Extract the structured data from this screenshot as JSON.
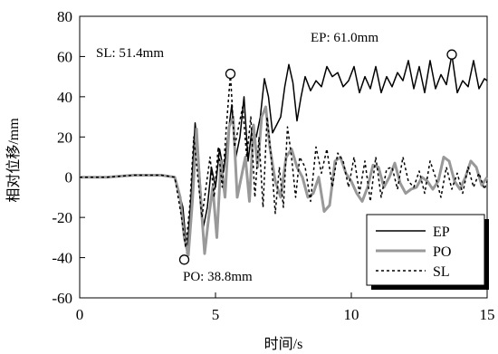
{
  "chart_data": {
    "type": "line",
    "xlabel": "时间/s",
    "ylabel": "相对位移/mm",
    "xlim": [
      0,
      15
    ],
    "ylim": [
      -60,
      80
    ],
    "xticks": [
      "0",
      "5",
      "10",
      "15"
    ],
    "yticks": [
      "-60",
      "-40",
      "-20",
      "0",
      "20",
      "40",
      "60",
      "80"
    ],
    "grid": false,
    "legend_position": "bottom-right",
    "series": [
      {
        "name": "EP",
        "color": "#000000",
        "style": "solid",
        "x": [
          0,
          1,
          2,
          3,
          3.5,
          3.8,
          3.95,
          4.1,
          4.25,
          4.4,
          4.55,
          4.7,
          4.85,
          5.0,
          5.15,
          5.3,
          5.45,
          5.6,
          5.75,
          5.9,
          6.05,
          6.2,
          6.35,
          6.5,
          6.65,
          6.8,
          6.95,
          7.1,
          7.25,
          7.4,
          7.55,
          7.7,
          7.85,
          8.0,
          8.15,
          8.3,
          8.5,
          8.7,
          8.9,
          9.1,
          9.3,
          9.5,
          9.7,
          9.9,
          10.1,
          10.3,
          10.5,
          10.7,
          10.9,
          11.1,
          11.3,
          11.5,
          11.7,
          11.9,
          12.1,
          12.3,
          12.5,
          12.7,
          12.9,
          13.1,
          13.3,
          13.5,
          13.7,
          13.9,
          14.1,
          14.3,
          14.5,
          14.7,
          14.9,
          15.0
        ],
        "y": [
          0,
          0,
          1,
          1,
          0,
          -15,
          -38,
          -10,
          27,
          5,
          -25,
          -15,
          5,
          -5,
          14,
          3,
          20,
          36,
          10,
          20,
          40,
          8,
          25,
          20,
          30,
          49,
          40,
          22,
          26,
          30,
          45,
          56,
          47,
          28,
          40,
          50,
          43,
          48,
          45,
          55,
          50,
          52,
          45,
          48,
          55,
          42,
          50,
          44,
          55,
          42,
          50,
          45,
          52,
          48,
          58,
          44,
          55,
          42,
          58,
          44,
          51,
          46,
          61,
          42,
          48,
          45,
          58,
          44,
          49,
          48
        ]
      },
      {
        "name": "PO",
        "color": "#999999",
        "style": "solid",
        "x": [
          0,
          1,
          2,
          3,
          3.5,
          3.7,
          3.85,
          4.0,
          4.15,
          4.3,
          4.45,
          4.6,
          4.75,
          4.9,
          5.05,
          5.2,
          5.35,
          5.5,
          5.65,
          5.8,
          5.95,
          6.1,
          6.25,
          6.4,
          6.55,
          6.7,
          6.85,
          7.0,
          7.2,
          7.4,
          7.6,
          7.8,
          8.0,
          8.2,
          8.4,
          8.6,
          8.8,
          9.0,
          9.2,
          9.4,
          9.6,
          9.8,
          10.0,
          10.2,
          10.4,
          10.6,
          10.8,
          11.0,
          11.2,
          11.4,
          11.6,
          11.8,
          12.0,
          12.2,
          12.4,
          12.6,
          12.8,
          13.0,
          13.2,
          13.4,
          13.6,
          13.8,
          14.0,
          14.2,
          14.4,
          14.6,
          14.8,
          15.0
        ],
        "y": [
          0,
          0,
          1,
          1,
          0,
          -10,
          -30,
          -38.8,
          -12,
          24,
          -10,
          -38,
          -20,
          -5,
          -30,
          8,
          -10,
          25,
          30,
          -10,
          0,
          10,
          -12,
          26,
          5,
          30,
          35,
          15,
          -2,
          -10,
          10,
          14,
          5,
          0,
          -10,
          -8,
          0,
          -17,
          -14,
          8,
          10,
          2,
          -2,
          -8,
          -12,
          -5,
          6,
          5,
          -5,
          0,
          7,
          -3,
          -8,
          -6,
          -5,
          0,
          -2,
          -6,
          -2,
          10,
          8,
          -2,
          -6,
          0,
          8,
          5,
          -4,
          0
        ]
      },
      {
        "name": "SL",
        "color": "#000000",
        "style": "dotted",
        "x": [
          0,
          1,
          2,
          3,
          3.5,
          3.75,
          3.9,
          4.05,
          4.2,
          4.35,
          4.5,
          4.65,
          4.8,
          4.95,
          5.1,
          5.25,
          5.4,
          5.55,
          5.7,
          5.85,
          6.0,
          6.15,
          6.3,
          6.45,
          6.6,
          6.75,
          6.9,
          7.05,
          7.2,
          7.35,
          7.5,
          7.65,
          7.8,
          7.95,
          8.1,
          8.3,
          8.5,
          8.7,
          8.9,
          9.1,
          9.3,
          9.5,
          9.7,
          9.9,
          10.1,
          10.3,
          10.5,
          10.7,
          10.9,
          11.1,
          11.3,
          11.5,
          11.7,
          11.9,
          12.1,
          12.3,
          12.5,
          12.7,
          12.9,
          13.1,
          13.3,
          13.5,
          13.7,
          13.9,
          14.1,
          14.3,
          14.5,
          14.7,
          14.9,
          15.0
        ],
        "y": [
          0,
          0,
          1,
          1,
          0,
          -20,
          -35,
          -15,
          20,
          0,
          -20,
          -5,
          10,
          -10,
          15,
          -5,
          25,
          51.4,
          15,
          25,
          35,
          10,
          30,
          -10,
          20,
          -15,
          30,
          10,
          -18,
          5,
          -15,
          25,
          10,
          -10,
          10,
          5,
          -12,
          15,
          2,
          14,
          -5,
          12,
          8,
          -5,
          10,
          -8,
          8,
          -12,
          10,
          -10,
          4,
          5,
          -6,
          10,
          -2,
          -5,
          3,
          -8,
          8,
          0,
          -10,
          5,
          -6,
          2,
          -8,
          5,
          -5,
          2,
          -6,
          -2
        ]
      }
    ],
    "annotations": [
      {
        "text": "SL: 51.4mm",
        "series": "SL",
        "x": 5.55,
        "y": 51.4
      },
      {
        "text": "EP: 61.0mm",
        "series": "EP",
        "x": 13.7,
        "y": 61.0
      },
      {
        "text": "PO: 38.8mm",
        "series": "PO",
        "x": 3.85,
        "y": -41.0
      }
    ]
  }
}
